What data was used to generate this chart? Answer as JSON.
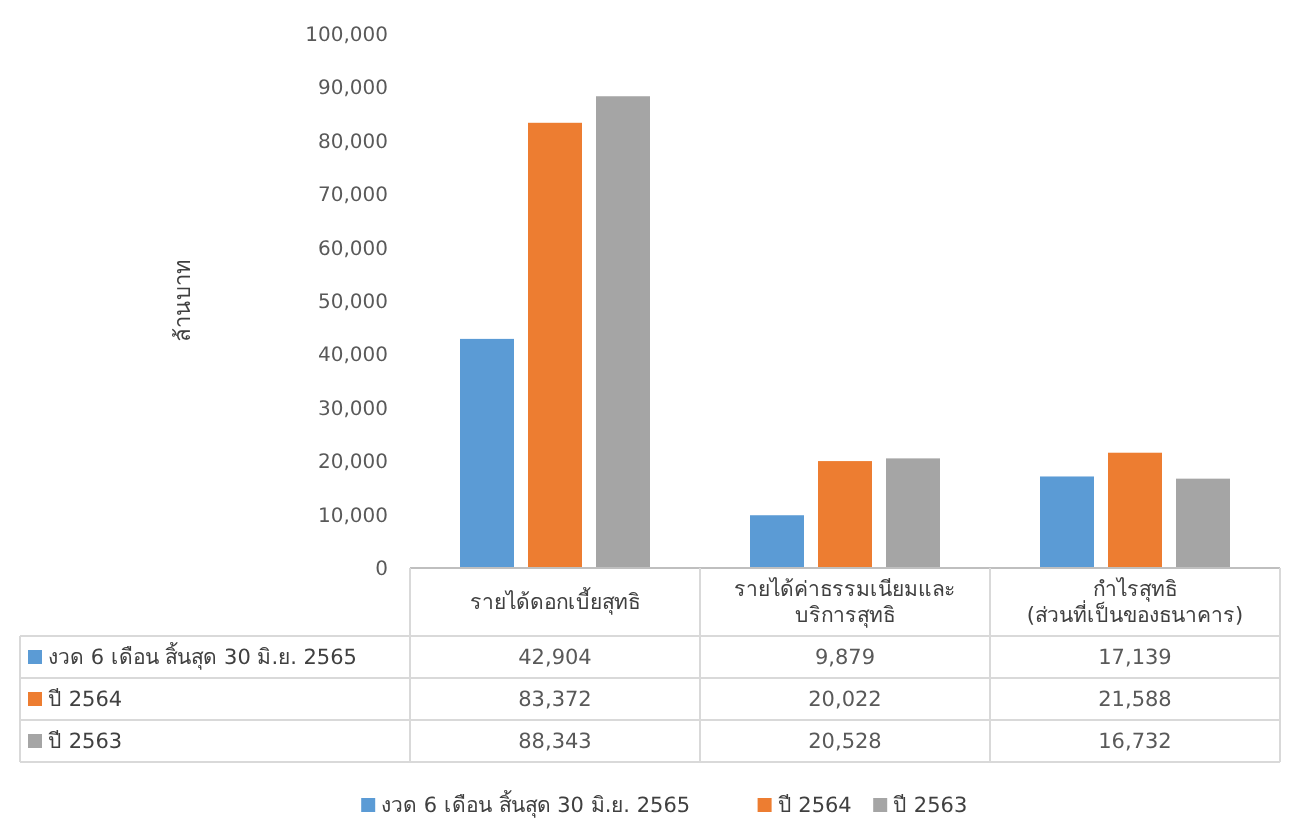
{
  "chart_data": {
    "type": "bar",
    "ylabel": "ล้านบาท",
    "categories": [
      "รายได้ดอกเบี้ยสุทธิ",
      "รายได้ค่าธรรมเนียมและ\nบริการสุทธิ",
      "กำไรสุทธิ\n(ส่วนที่เป็นของธนาคาร)"
    ],
    "series": [
      {
        "name": "งวด 6 เดือน สิ้นสุด 30 มิ.ย. 2565",
        "color": "#5b9bd5",
        "values": [
          42904,
          9879,
          17139
        ],
        "value_labels": [
          "42,904",
          "9,879",
          "17,139"
        ]
      },
      {
        "name": "ปี 2564",
        "color": "#ed7d31",
        "values": [
          83372,
          20022,
          21588
        ],
        "value_labels": [
          "83,372",
          "20,022",
          "21,588"
        ]
      },
      {
        "name": "ปี 2563",
        "color": "#a5a5a5",
        "values": [
          88343,
          20528,
          16732
        ],
        "value_labels": [
          "88,343",
          "20,528",
          "16,732"
        ]
      }
    ],
    "ylim": [
      0,
      100000
    ],
    "yticks": [
      {
        "value": 0,
        "label": "0"
      },
      {
        "value": 10000,
        "label": "10,000"
      },
      {
        "value": 20000,
        "label": "20,000"
      },
      {
        "value": 30000,
        "label": "30,000"
      },
      {
        "value": 40000,
        "label": "40,000"
      },
      {
        "value": 50000,
        "label": "50,000"
      },
      {
        "value": 60000,
        "label": "60,000"
      },
      {
        "value": 70000,
        "label": "70,000"
      },
      {
        "value": 80000,
        "label": "80,000"
      },
      {
        "value": 90000,
        "label": "90,000"
      },
      {
        "value": 100000,
        "label": "100,000"
      }
    ],
    "grid": false,
    "legend": "bottom"
  }
}
